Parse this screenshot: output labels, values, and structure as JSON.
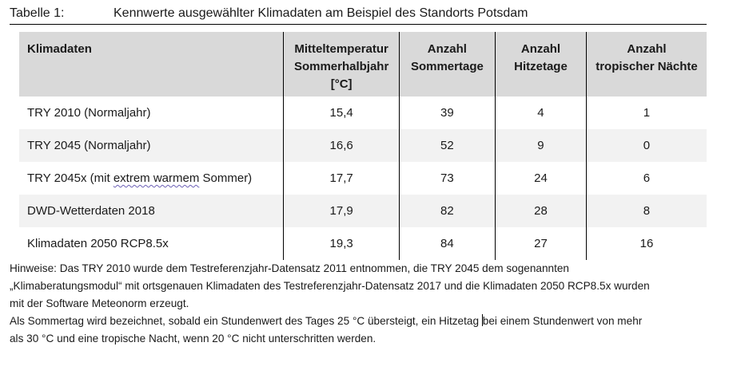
{
  "caption": {
    "label": "Tabelle 1:",
    "title": "Kennwerte ausgewählter Klimadaten am Beispiel des Standorts Potsdam"
  },
  "table": {
    "headers": [
      [
        "Klimadaten"
      ],
      [
        "Mitteltemperatur",
        "Sommerhalbjahr",
        "[°C]"
      ],
      [
        "Anzahl",
        "Sommertage"
      ],
      [
        "Anzahl",
        "Hitzetage"
      ],
      [
        "Anzahl",
        "tropischer Nächte"
      ]
    ],
    "rows": [
      {
        "name": "TRY 2010 (Normaljahr)",
        "values": [
          "15,4",
          "39",
          "4",
          "1"
        ]
      },
      {
        "name": "TRY 2045 (Normaljahr)",
        "values": [
          "16,6",
          "52",
          "9",
          "0"
        ]
      },
      {
        "name_before": "TRY 2045x (mit ",
        "name_flagged": "extrem warmem",
        "name_after": " Sommer)",
        "values": [
          "17,7",
          "73",
          "24",
          "6"
        ]
      },
      {
        "name": "DWD-Wetterdaten 2018",
        "values": [
          "17,9",
          "82",
          "28",
          "8"
        ]
      },
      {
        "name": "Klimadaten 2050 RCP8.5x",
        "values": [
          "19,3",
          "84",
          "27",
          "16"
        ]
      }
    ]
  },
  "notes": {
    "line1": "Hinweise: Das TRY 2010 wurde dem Testreferenzjahr-Datensatz 2011 entnommen, die TRY 2045 dem sogenannten",
    "line2": "„Klimaberatungsmodul“ mit ortsgenauen Klimadaten des Testreferenzjahr-Datensatz 2017 und die Klimadaten 2050 RCP8.5x wurden",
    "line3": "mit der Software Meteonorm erzeugt.",
    "line4_before_cursor": "Als Sommertag wird bezeichnet, sobald ein Stundenwert des Tages 25 °C übersteigt, ein Hitzetag ",
    "line4_after_cursor": "bei einem Stundenwert von mehr",
    "line5": "als 30 °C und eine tropische Nacht, wenn 20 °C nicht unterschritten werden."
  }
}
